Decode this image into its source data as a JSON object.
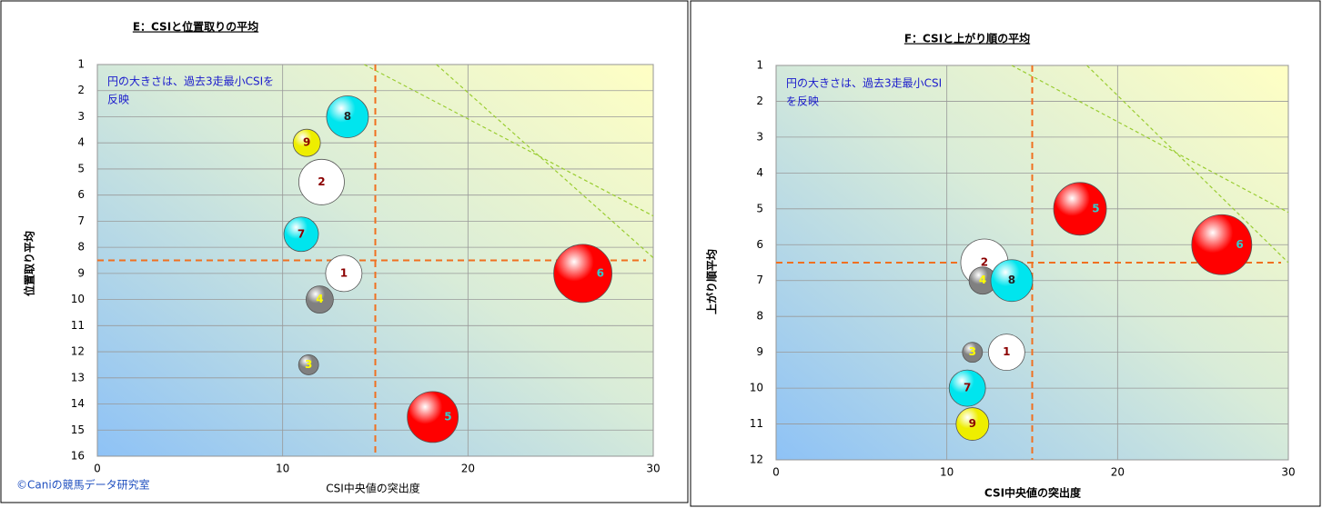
{
  "credit": "©Caniの競馬データ研究室",
  "chart_data": [
    {
      "type": "bubble",
      "title": "E：CSIと位置取りの平均",
      "x_label": "CSI中央値の突出度",
      "y_label": "位置取り平均",
      "annotation": [
        "円の大きさは、過去3走最小CSIを",
        "反映"
      ],
      "xlim": [
        0,
        30
      ],
      "xticks": [
        0,
        10,
        20,
        30
      ],
      "ylim": [
        1,
        16
      ],
      "y_inverted": true,
      "yticks": [
        1,
        2,
        3,
        4,
        5,
        6,
        7,
        8,
        9,
        10,
        11,
        12,
        13,
        14,
        15,
        16
      ],
      "grid": true,
      "vline": 15,
      "hline": 8.5,
      "diagonals": [
        [
          [
            14.4,
            1
          ],
          [
            30,
            6.8
          ]
        ],
        [
          [
            18.3,
            1
          ],
          [
            30,
            8.4
          ]
        ]
      ],
      "labels": [
        "1",
        "2",
        "3",
        "4",
        "5",
        "6",
        "7",
        "8",
        "9"
      ],
      "x": [
        13.3,
        12.1,
        11.4,
        12.0,
        18.1,
        26.2,
        11.0,
        13.5,
        11.3
      ],
      "y": [
        9,
        5.5,
        12.5,
        10,
        14.5,
        9,
        7.5,
        3,
        4
      ],
      "sizes": [
        20,
        25,
        11,
        15,
        28,
        32,
        19,
        23,
        15
      ],
      "colors": [
        "#ffffff",
        "#ffffff",
        "#808080",
        "#808080",
        "#ff0000",
        "#ff0000",
        "#00e5ee",
        "#00e5ee",
        "#eeee00"
      ],
      "label_colors": [
        "#8b0000",
        "#8b0000",
        "#ffff00",
        "#ffff00",
        "#33cccc",
        "#33cccc",
        "#8b0000",
        "#222222",
        "#8b0000"
      ]
    },
    {
      "type": "bubble",
      "title": "F：CSIと上がり順の平均",
      "x_label": "CSI中央値の突出度",
      "y_label": "上がり順平均",
      "annotation": [
        "円の大きさは、過去3走最小CSI",
        "を反映"
      ],
      "xlim": [
        0,
        30
      ],
      "xticks": [
        0,
        10,
        20,
        30
      ],
      "ylim": [
        1,
        12
      ],
      "y_inverted": true,
      "yticks": [
        1,
        2,
        3,
        4,
        5,
        6,
        7,
        8,
        9,
        10,
        11,
        12
      ],
      "grid": true,
      "vline": 15,
      "hline": 6.5,
      "diagonals": [
        [
          [
            13.8,
            1
          ],
          [
            30,
            5.1
          ]
        ],
        [
          [
            18.2,
            1
          ],
          [
            30,
            6.5
          ]
        ]
      ],
      "labels": [
        "1",
        "2",
        "3",
        "4",
        "5",
        "6",
        "7",
        "8",
        "9"
      ],
      "x": [
        13.5,
        12.2,
        11.5,
        12.1,
        17.8,
        26.1,
        11.2,
        13.8,
        11.5
      ],
      "y": [
        9,
        6.5,
        9,
        7,
        5,
        6,
        10,
        7,
        11
      ],
      "sizes": [
        20,
        26,
        11,
        15,
        29,
        33,
        20,
        23,
        18
      ],
      "colors": [
        "#ffffff",
        "#ffffff",
        "#808080",
        "#808080",
        "#ff0000",
        "#ff0000",
        "#00e5ee",
        "#00e5ee",
        "#eeee00"
      ],
      "label_colors": [
        "#8b0000",
        "#8b0000",
        "#ffff00",
        "#ffff00",
        "#33cccc",
        "#33cccc",
        "#8b0000",
        "#222222",
        "#8b0000"
      ]
    }
  ]
}
